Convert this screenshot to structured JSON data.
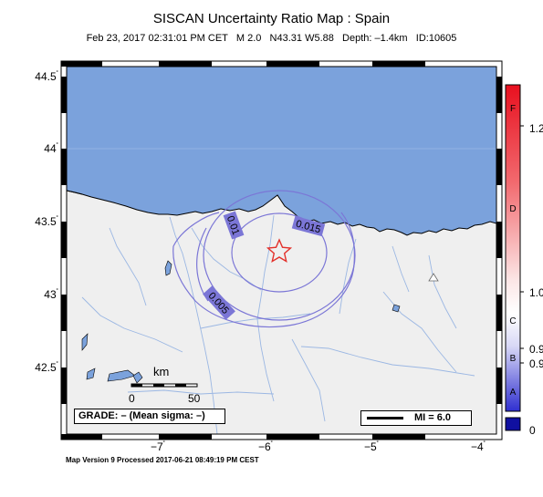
{
  "title": "SISCAN Uncertainty Ratio Map : Spain",
  "subtitle": {
    "datetime": "Feb 23, 2017 02:31:01 PM CET",
    "magnitude": "M 2.0",
    "location": "N43.31 W5.88",
    "depth": "Depth: –1.4km",
    "id": "ID:10605"
  },
  "map": {
    "lat_ticks": [
      "44.5",
      "44",
      "43.5",
      "43",
      "42.5"
    ],
    "lon_ticks": [
      "−7",
      "−6",
      "−5",
      "−4"
    ],
    "degree_symbol": "˚",
    "contour_labels": [
      "0.01",
      "0.015",
      "0.005"
    ],
    "epicenter_icon": "star-icon",
    "station_icon": "triangle-icon",
    "colors": {
      "sea": "#7ba2dc",
      "land": "#efefef",
      "contour": "#7b76d6",
      "epicenter": "#e3302a"
    }
  },
  "scale_bar": {
    "unit": "km",
    "start": "0",
    "end": "50"
  },
  "grade_box": "GRADE: – (Mean sigma: –)",
  "mi_legend": "MI = 6.0",
  "colorbar": {
    "letters": [
      "F",
      "D",
      "C",
      "B",
      "A"
    ],
    "values": [
      "1.2",
      "1.0",
      "0.9",
      "0.9",
      "0"
    ],
    "colors": {
      "top": "#e8101f",
      "middle": "#ffffff",
      "bottom": "#2f2fd0",
      "below": "#1010a0"
    }
  },
  "footer": "Map Version 9 Processed 2017-06-21 08:49:19 PM CEST"
}
